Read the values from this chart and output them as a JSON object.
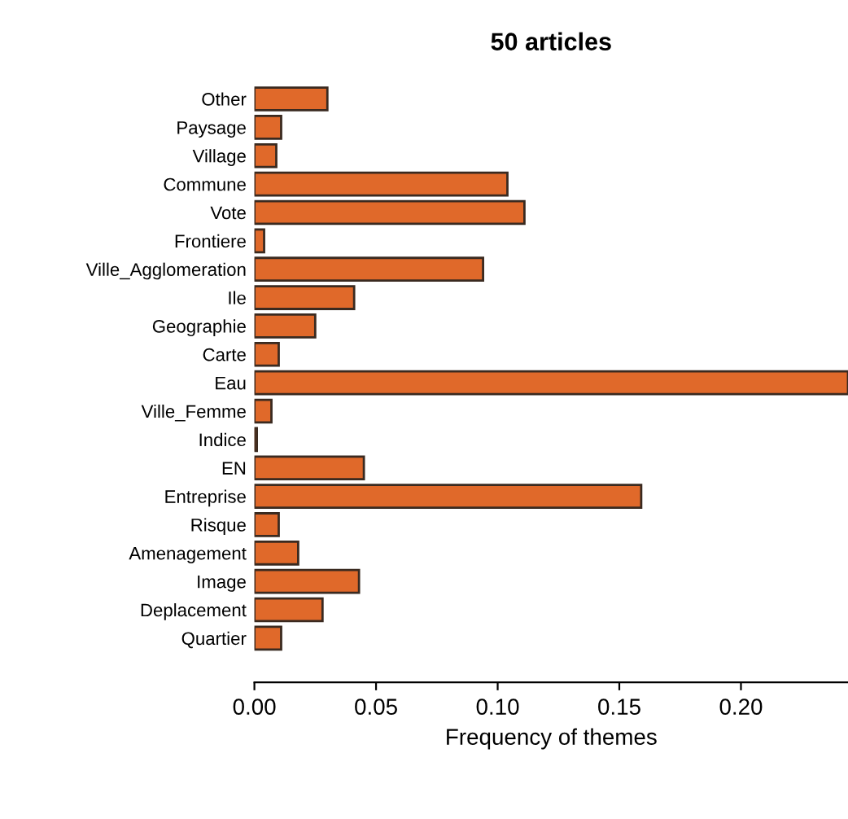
{
  "chart_data": {
    "type": "bar",
    "orientation": "horizontal",
    "title": "50 articles",
    "xlabel": "Frequency of themes",
    "categories": [
      "Other",
      "Paysage",
      "Village",
      "Commune",
      "Vote",
      "Frontiere",
      "Ville_Agglomeration",
      "Ile",
      "Geographie",
      "Carte",
      "Eau",
      "Ville_Femme",
      "Indice",
      "EN",
      "Entreprise",
      "Risque",
      "Amenagement",
      "Image",
      "Deplacement",
      "Quartier"
    ],
    "values": [
      0.03,
      0.011,
      0.009,
      0.104,
      0.111,
      0.004,
      0.094,
      0.041,
      0.025,
      0.01,
      0.244,
      0.007,
      0.001,
      0.045,
      0.159,
      0.01,
      0.018,
      0.043,
      0.028,
      0.011
    ],
    "color": "#e0692a",
    "xlim": [
      0,
      0.244
    ],
    "xticks": [
      {
        "value": 0,
        "label": "0.00"
      },
      {
        "value": 0.05,
        "label": "0.05"
      },
      {
        "value": 0.1,
        "label": "0.10"
      },
      {
        "value": 0.15,
        "label": "0.15"
      },
      {
        "value": 0.2,
        "label": "0.20"
      }
    ],
    "grid": false,
    "legend": false
  }
}
